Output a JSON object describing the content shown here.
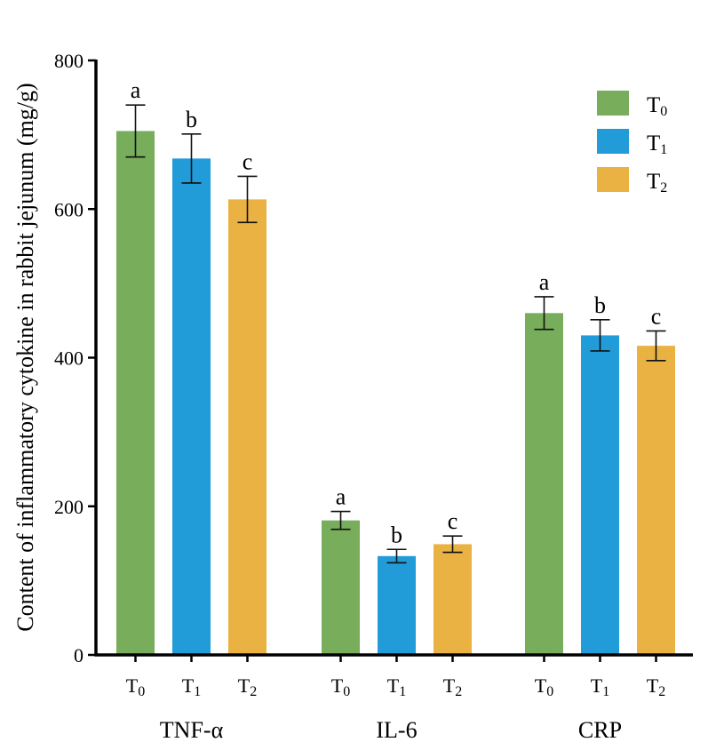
{
  "chart_data": {
    "type": "bar",
    "title": "",
    "xlabel": "",
    "ylabel": "Content of inflammatory cytokine in rabbit jejunum (mg/g)",
    "ylim": [
      0,
      800
    ],
    "yticks": [
      0,
      200,
      400,
      600,
      800
    ],
    "grid": false,
    "legend_position": "top-right",
    "categories": [
      "TNF-α",
      "IL-6",
      "CRP"
    ],
    "series": [
      {
        "name": "T0",
        "label_base": "T",
        "label_sub": "0",
        "color": "#77AD5B",
        "values": [
          705,
          181,
          460
        ],
        "errors": [
          35,
          12,
          22
        ],
        "letters": [
          "a",
          "a",
          "a"
        ]
      },
      {
        "name": "T1",
        "label_base": "T",
        "label_sub": "1",
        "color": "#229CD9",
        "values": [
          668,
          133,
          430
        ],
        "errors": [
          33,
          9,
          21
        ],
        "letters": [
          "b",
          "b",
          "b"
        ]
      },
      {
        "name": "T2",
        "label_base": "T",
        "label_sub": "2",
        "color": "#E9B242",
        "values": [
          613,
          149,
          416
        ],
        "errors": [
          31,
          11,
          20
        ],
        "letters": [
          "c",
          "c",
          "c"
        ]
      }
    ]
  }
}
